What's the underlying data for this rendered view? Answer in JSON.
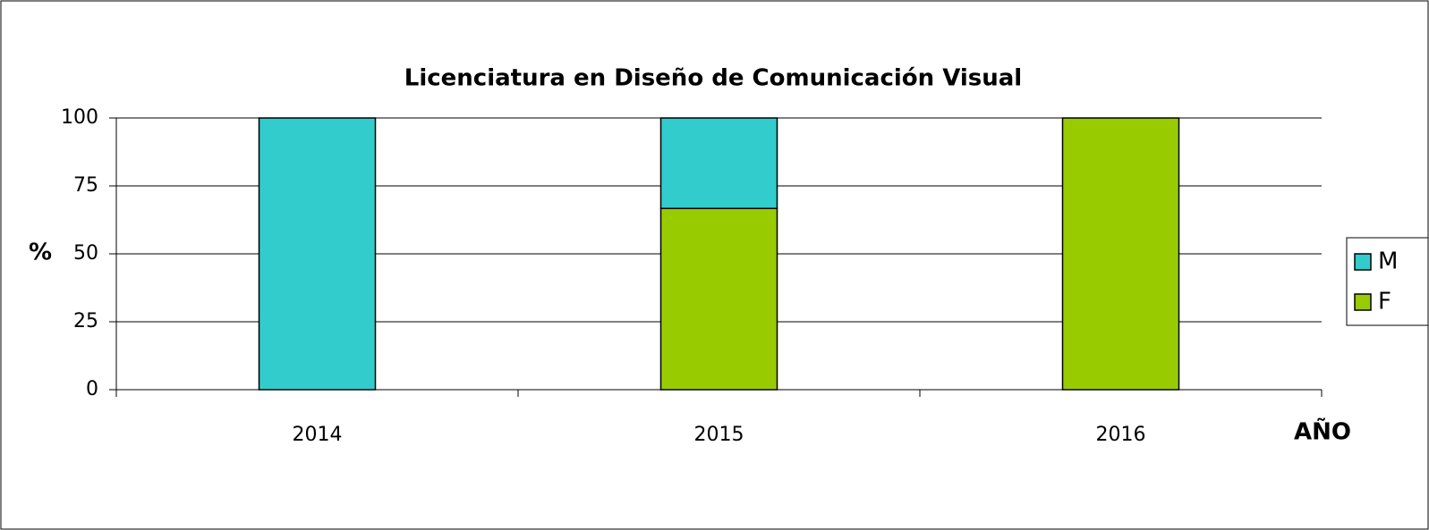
{
  "chart_data": {
    "type": "stacked_bar",
    "title": "Licenciatura en Diseño de Comunicación Visual",
    "y_label": "%",
    "x_label": "AÑO",
    "categories": [
      "2014",
      "2015",
      "2016"
    ],
    "series": [
      {
        "name": "F",
        "color": "#99cc00",
        "values": [
          0,
          66.7,
          100
        ]
      },
      {
        "name": "M",
        "color": "#33cccc",
        "values": [
          100,
          33.3,
          0
        ]
      }
    ],
    "ylim": [
      0,
      100
    ],
    "yticks": [
      0,
      25,
      50,
      75,
      100
    ],
    "grid": true,
    "legend": "right"
  }
}
